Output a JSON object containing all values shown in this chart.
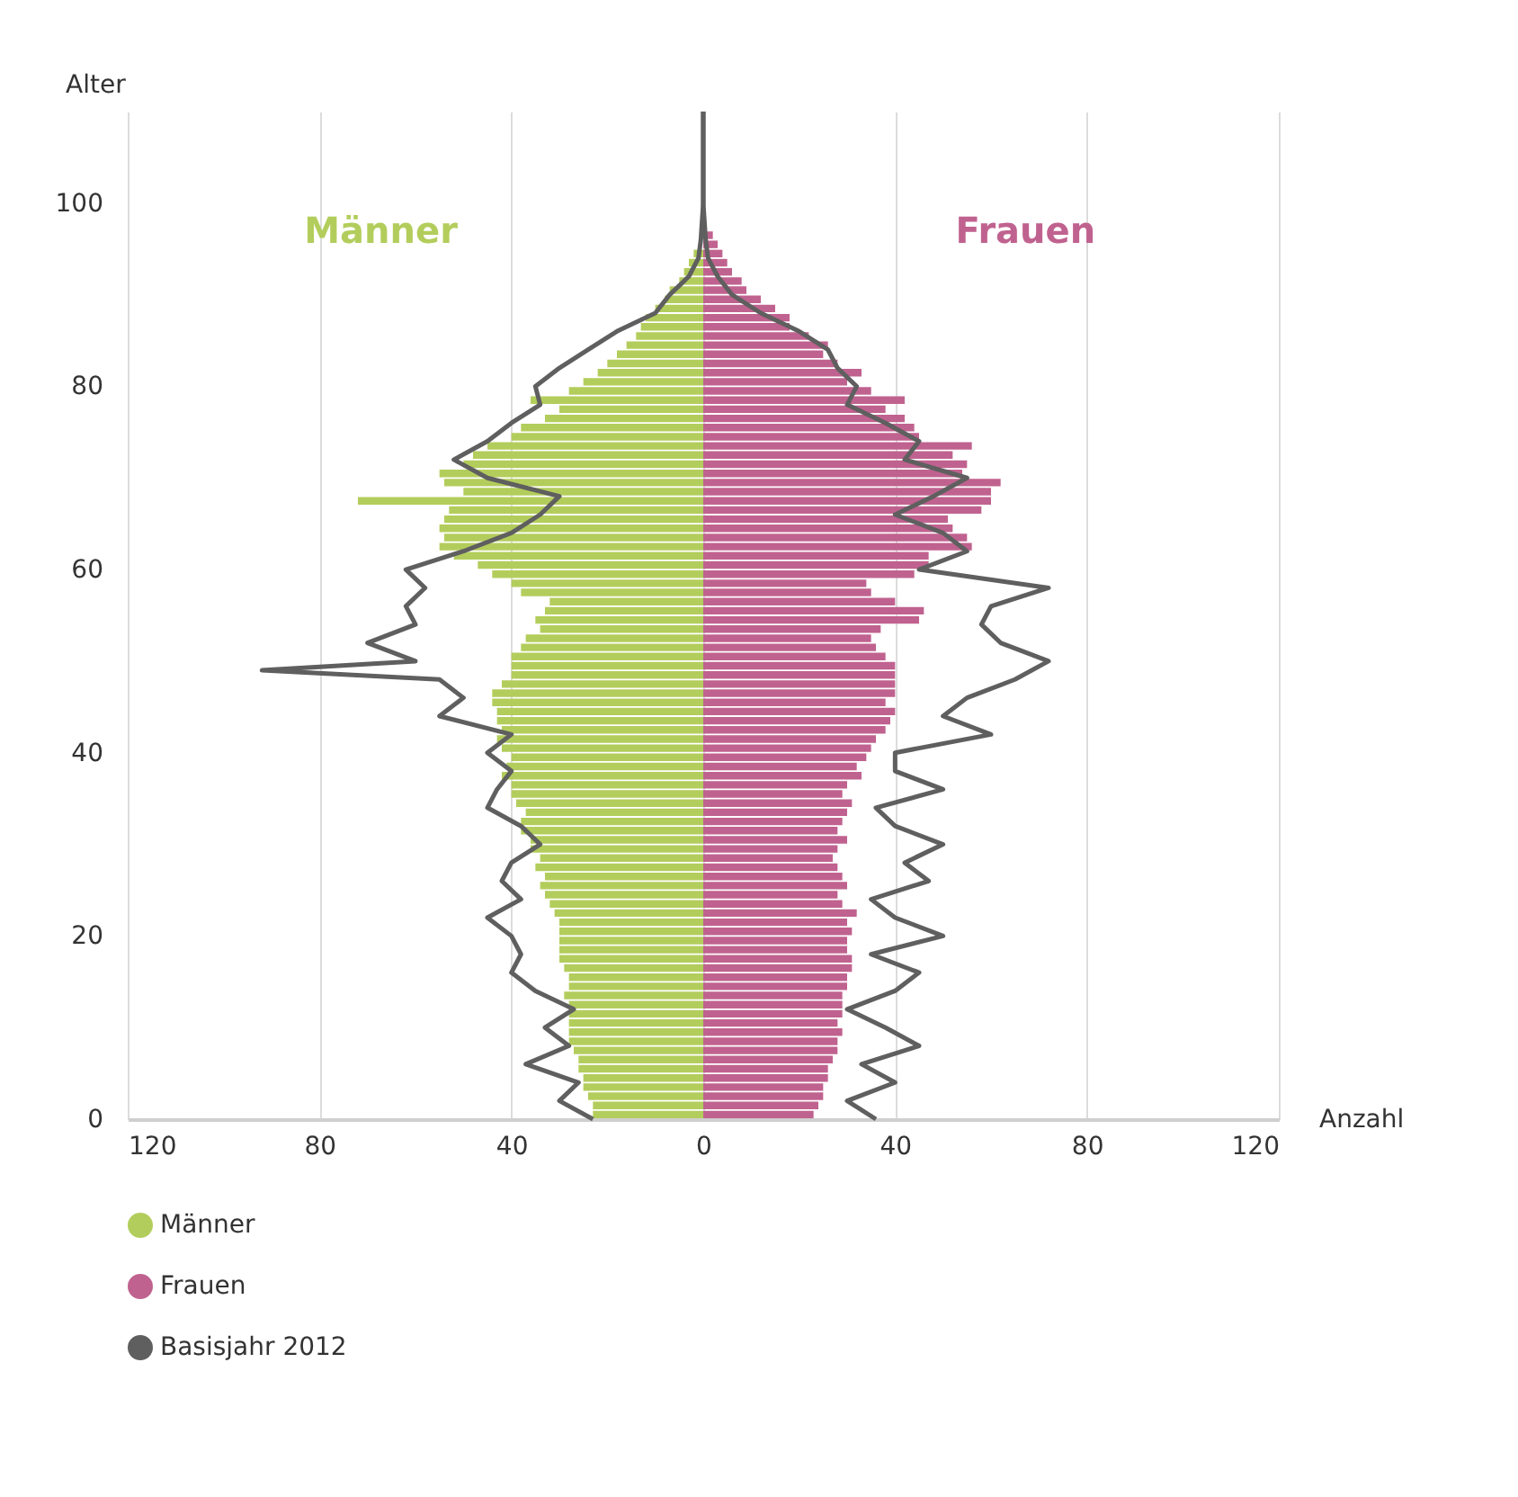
{
  "chart_data": {
    "type": "bar",
    "orientation": "horizontal",
    "stacked": true,
    "xlabel": "Anzahl",
    "ylabel": "Alter",
    "xlim": [
      -120,
      120
    ],
    "xticks": [
      {
        "value": -120,
        "label": "120"
      },
      {
        "value": -80,
        "label": "80"
      },
      {
        "value": -40,
        "label": "40"
      },
      0,
      40,
      80,
      120
    ],
    "ylim": [
      0,
      110
    ],
    "yticks": [
      0,
      20,
      40,
      60,
      80,
      100
    ],
    "grid": "x",
    "legend": "bottom left",
    "x": [
      0.5,
      1.5,
      2.5,
      3.5,
      4.5,
      5.5,
      6.5,
      7.5,
      8.5,
      9.5,
      10.5,
      11.5,
      12.5,
      13.5,
      14.5,
      15.5,
      16.5,
      17.5,
      18.5,
      19.5,
      20.5,
      21.5,
      22.5,
      23.5,
      24.5,
      25.5,
      26.5,
      27.5,
      28.5,
      29.5,
      30.5,
      31.5,
      32.5,
      33.5,
      34.5,
      35.5,
      36.5,
      37.5,
      38.5,
      39.5,
      40.5,
      41.5,
      42.5,
      43.5,
      44.5,
      45.5,
      46.5,
      47.5,
      48.5,
      49.5,
      50.5,
      51.5,
      52.5,
      53.5,
      54.5,
      55.5,
      56.5,
      57.5,
      58.5,
      59.5,
      60.5,
      61.5,
      62.5,
      63.5,
      64.5,
      65.5,
      66.5,
      67.5,
      68.5,
      69.5,
      70.5,
      71.5,
      72.5,
      73.5,
      74.5,
      75.5,
      76.5,
      77.5,
      78.5,
      79.5,
      80.5,
      81.5,
      82.5,
      83.5,
      84.5,
      85.5,
      86.5,
      87.5,
      88.5,
      89.5,
      90.5,
      91.5,
      92.5,
      93.5,
      94.5,
      95.5,
      96.5,
      97.5,
      98.5,
      99.5
    ],
    "series": [
      {
        "name": "Männer",
        "color": "#b3cd5c",
        "values": [
          -23,
          -23,
          -24,
          -25,
          -25,
          -26,
          -26,
          -27,
          -28,
          -28,
          -28,
          -28,
          -28,
          -29,
          -28,
          -28,
          -29,
          -30,
          -30,
          -30,
          -30,
          -30,
          -31,
          -32,
          -33,
          -34,
          -33,
          -35,
          -34,
          -36,
          -36,
          -38,
          -38,
          -37,
          -39,
          -40,
          -40,
          -42,
          -41,
          -40,
          -42,
          -43,
          -42,
          -43,
          -43,
          -44,
          -44,
          -42,
          -40,
          -40,
          -40,
          -38,
          -37,
          -34,
          -35,
          -33,
          -32,
          -38,
          -40,
          -44,
          -47,
          -52,
          -55,
          -54,
          -55,
          -54,
          -53,
          -72,
          -50,
          -54,
          -55,
          -50,
          -48,
          -45,
          -40,
          -38,
          -33,
          -30,
          -36,
          -28,
          -25,
          -22,
          -20,
          -18,
          -16,
          -14,
          -13,
          -12,
          -10,
          -8,
          -7,
          -5,
          -4,
          -3,
          -2,
          null,
          null,
          -0.5,
          -0.3,
          -0.2
        ]
      },
      {
        "name": "Frauen",
        "color": "#c0628f",
        "values": [
          23,
          24,
          25,
          25,
          26,
          26,
          27,
          28,
          28,
          29,
          28,
          29,
          29,
          29,
          30,
          30,
          31,
          31,
          30,
          30,
          31,
          30,
          32,
          29,
          28,
          30,
          29,
          28,
          27,
          28,
          30,
          28,
          29,
          30,
          31,
          29,
          30,
          33,
          32,
          34,
          35,
          36,
          38,
          39,
          40,
          38,
          40,
          40,
          40,
          40,
          38,
          36,
          35,
          37,
          45,
          46,
          40,
          35,
          34,
          44,
          47,
          47,
          56,
          55,
          52,
          51,
          58,
          60,
          60,
          62,
          54,
          55,
          52,
          56,
          45,
          44,
          42,
          38,
          42,
          35,
          30,
          33,
          28,
          25,
          26,
          22,
          18,
          18,
          15,
          12,
          9,
          8,
          6,
          5,
          4,
          3,
          2,
          null,
          0.5,
          0.3
        ]
      },
      {
        "name": "Basisjahr 2012",
        "type": "line",
        "color": "#5f5f5f",
        "x": [
          0,
          2,
          4,
          6,
          8,
          10,
          12,
          14,
          16,
          18,
          20,
          22,
          24,
          26,
          28,
          30,
          32,
          34,
          36,
          38,
          40,
          42,
          44,
          46,
          48,
          49,
          50,
          52,
          54,
          56,
          58,
          60,
          62,
          64,
          66,
          68,
          70,
          72,
          74,
          76,
          78,
          80,
          82,
          84,
          86,
          88,
          90,
          92,
          94,
          96,
          100,
          110
        ],
        "values": [
          -23,
          -30,
          -26,
          -37,
          -28,
          -33,
          -27,
          -35,
          -40,
          -38,
          -40,
          -45,
          -38,
          -42,
          -40,
          -34,
          -38,
          -45,
          -43,
          -40,
          -45,
          -40,
          -55,
          -50,
          -55,
          -92,
          -60,
          -70,
          -60,
          -62,
          -58,
          -62,
          -50,
          -40,
          -34,
          -30,
          -45,
          -52,
          -45,
          -40,
          -34,
          -35,
          -30,
          -24,
          -18,
          -10,
          -7,
          -3,
          -1,
          -0.5,
          0,
          0
        ]
      },
      {
        "type": "line",
        "color": "#5f5f5f",
        "x": [
          0,
          2,
          4,
          6,
          8,
          10,
          12,
          14,
          16,
          18,
          20,
          22,
          24,
          26,
          28,
          30,
          32,
          34,
          36,
          38,
          40,
          42,
          44,
          46,
          48,
          50,
          52,
          54,
          56,
          58,
          60,
          62,
          64,
          66,
          68,
          70,
          72,
          74,
          76,
          78,
          80,
          82,
          84,
          86,
          88,
          90,
          92,
          94,
          96,
          100,
          110
        ],
        "values": [
          36,
          30,
          40,
          33,
          45,
          38,
          30,
          40,
          45,
          35,
          50,
          40,
          35,
          47,
          42,
          50,
          40,
          36,
          50,
          40,
          40,
          60,
          50,
          55,
          65,
          72,
          62,
          58,
          60,
          72,
          45,
          55,
          50,
          40,
          48,
          55,
          42,
          45,
          38,
          30,
          32,
          28,
          26,
          20,
          12,
          6,
          3,
          1,
          0.5,
          0,
          0
        ]
      }
    ],
    "annotations": [
      "Männer",
      "Frauen"
    ]
  }
}
